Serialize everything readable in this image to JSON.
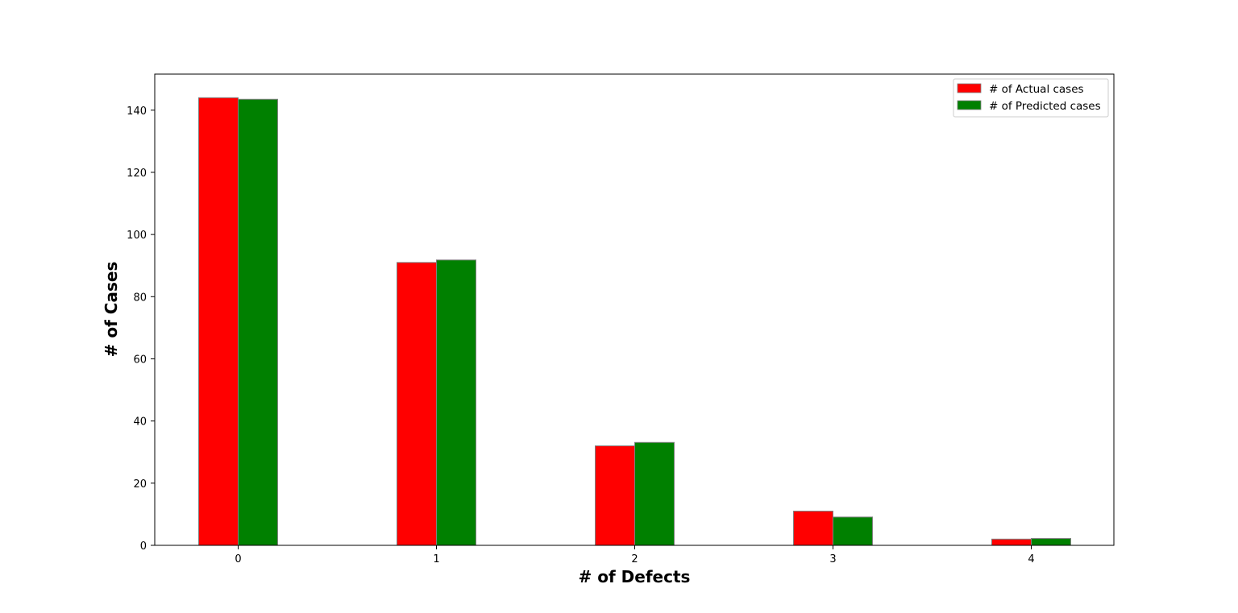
{
  "chart_data": {
    "type": "bar",
    "title": "",
    "xlabel": "# of Defects",
    "ylabel": "# of Cases",
    "categories": [
      "0",
      "1",
      "2",
      "3",
      "4"
    ],
    "series": [
      {
        "name": "# of Actual cases",
        "color": "#ff0000",
        "values": [
          144,
          91,
          32,
          11,
          2
        ]
      },
      {
        "name": "# of Predicted cases",
        "color": "#008000",
        "values": [
          143.5,
          91.8,
          33.1,
          9.1,
          2.2
        ]
      }
    ],
    "yticks": [
      0,
      20,
      40,
      60,
      80,
      100,
      120,
      140
    ],
    "ylim": [
      0,
      151.6
    ],
    "grid": false,
    "legend_position": "top-right",
    "bar_edge_color": "#808080"
  }
}
